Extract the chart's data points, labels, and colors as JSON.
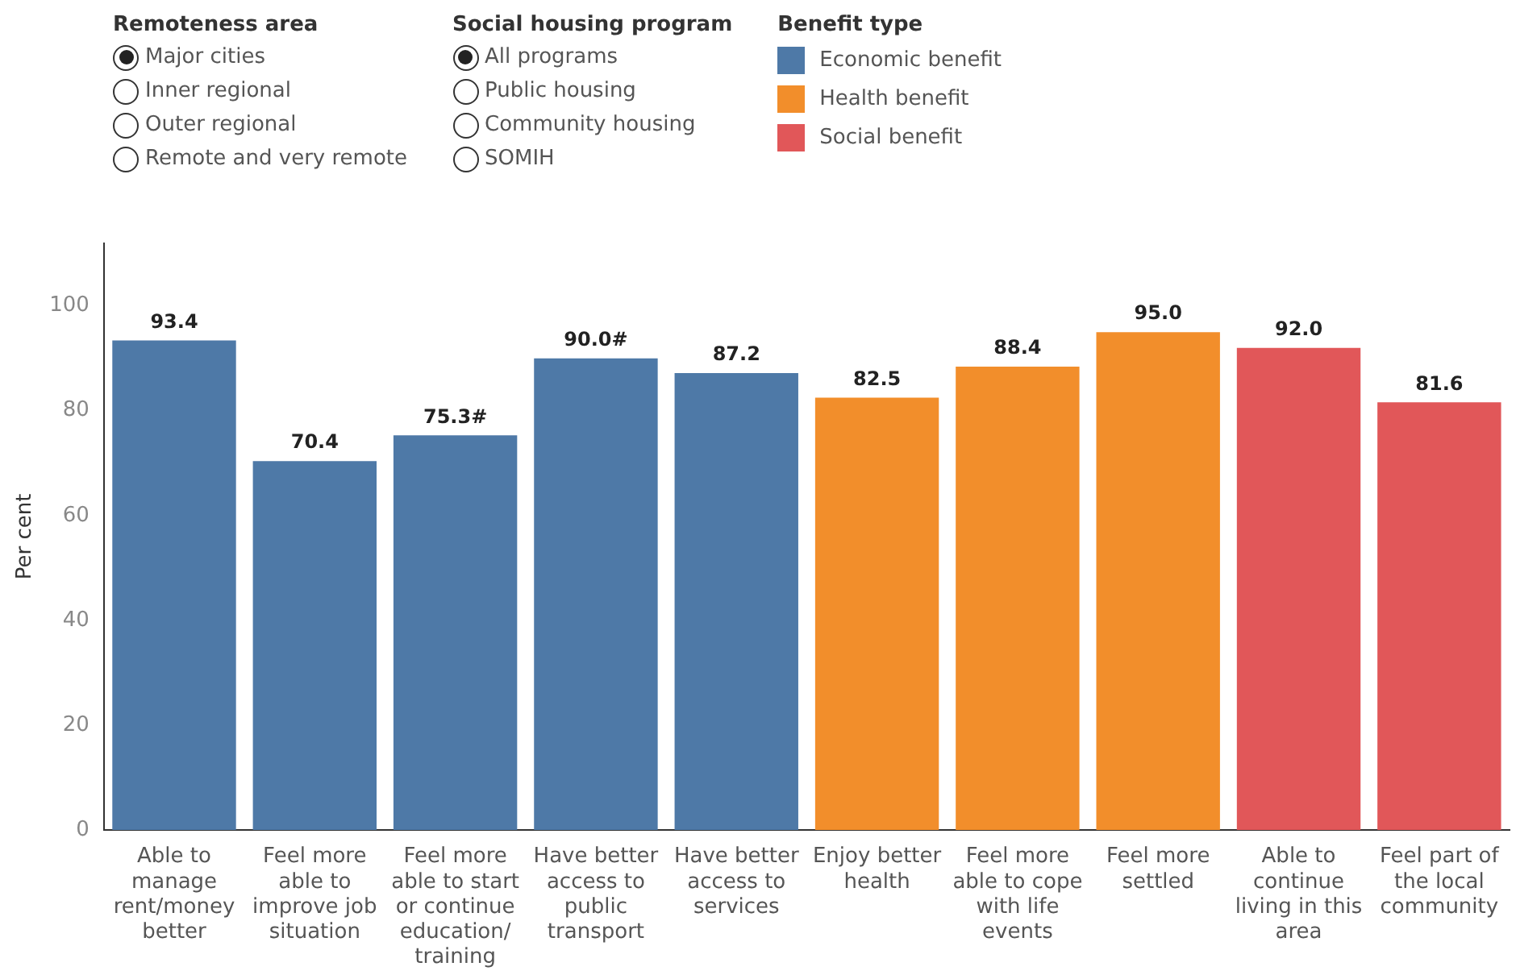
{
  "chart_data": {
    "type": "bar",
    "ylabel": "Per cent",
    "legend_title": "Benefit type",
    "legend": "top",
    "annotations": [
      "Remoteness area",
      "Major cities",
      "Inner regional",
      "Outer regional",
      "Remote and very remote",
      "Social housing program",
      "All programs",
      "Public housing",
      "Community housing",
      "SOMIH"
    ],
    "categories": [
      "Able to manage rent/money better",
      "Feel more able to improve job situation",
      "Feel more able to start or continue education/ training",
      "Have better access to public transport",
      "Have better access to services",
      "Enjoy better health",
      "Feel more able to cope with life events",
      "Feel more settled",
      "Able to continue living in this area",
      "Feel part of the local community"
    ],
    "series": [
      {
        "name": "Economic benefit",
        "color": "#4e79a7",
        "values": [
          93.4,
          70.4,
          75.3,
          90.0,
          87.2,
          null,
          null,
          null,
          null,
          null
        ],
        "value_labels": [
          "93.4",
          "70.4",
          "75.3#",
          "90.0#",
          "87.2",
          null,
          null,
          null,
          null,
          null
        ]
      },
      {
        "name": "Health benefit",
        "color": "#f28e2b",
        "values": [
          null,
          null,
          null,
          null,
          null,
          82.5,
          88.4,
          95.0,
          null,
          null
        ],
        "value_labels": [
          null,
          null,
          null,
          null,
          null,
          "82.5",
          "88.4",
          "95.0",
          null,
          null
        ]
      },
      {
        "name": "Social benefit",
        "color": "#e15759",
        "values": [
          null,
          null,
          null,
          null,
          null,
          null,
          null,
          null,
          92.0,
          81.6
        ],
        "value_labels": [
          null,
          null,
          null,
          null,
          null,
          null,
          null,
          null,
          "92.0",
          "81.6"
        ]
      }
    ],
    "ylim": [
      0,
      112
    ],
    "yticks": [
      0,
      20,
      40,
      60,
      80,
      100
    ],
    "grid": false
  }
}
